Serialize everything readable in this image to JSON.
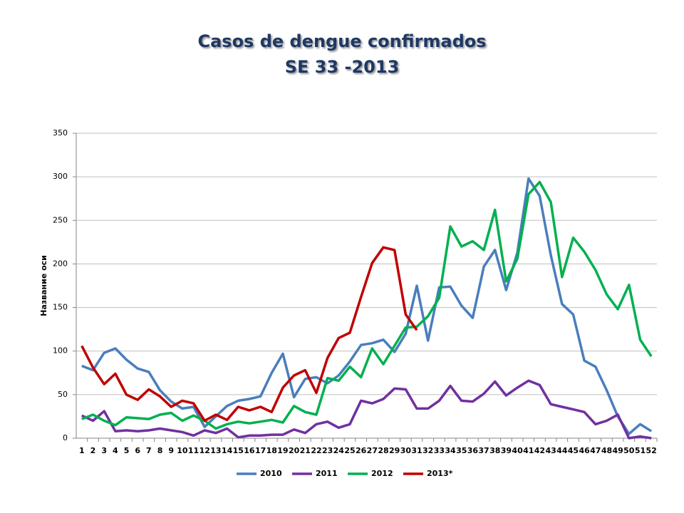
{
  "chart_data": {
    "type": "line",
    "title": [
      "Casos de dengue confirmados",
      "SE 33 -2013"
    ],
    "y_label": "Название оси",
    "categories": [
      "1",
      "2",
      "3",
      "4",
      "5",
      "6",
      "7",
      "8",
      "9",
      "10",
      "11",
      "12",
      "13",
      "14",
      "15",
      "16",
      "17",
      "18",
      "19",
      "20",
      "21",
      "22",
      "23",
      "24",
      "25",
      "26",
      "27",
      "28",
      "29",
      "30",
      "31",
      "32",
      "33",
      "34",
      "35",
      "36",
      "37",
      "38",
      "39",
      "40",
      "41",
      "42",
      "43",
      "44",
      "45",
      "46",
      "47",
      "48",
      "49",
      "50",
      "51",
      "52"
    ],
    "series": [
      {
        "name": "2010",
        "color": "#4a7ebb",
        "values": [
          83,
          78,
          98,
          103,
          90,
          80,
          76,
          55,
          42,
          34,
          36,
          13,
          25,
          37,
          43,
          45,
          48,
          75,
          97,
          47,
          68,
          70,
          63,
          72,
          88,
          107,
          109,
          113,
          99,
          120,
          175,
          112,
          173,
          174,
          152,
          138,
          197,
          216,
          170,
          213,
          298,
          278,
          210,
          154,
          142,
          89,
          82,
          55,
          25,
          5,
          16,
          8
        ]
      },
      {
        "name": "2011",
        "color": "#7030a0",
        "values": [
          26,
          20,
          31,
          8,
          9,
          8,
          9,
          11,
          9,
          7,
          3,
          9,
          6,
          11,
          1,
          3,
          3,
          4,
          4,
          10,
          6,
          16,
          19,
          12,
          16,
          43,
          40,
          45,
          57,
          56,
          34,
          34,
          43,
          60,
          43,
          42,
          51,
          65,
          49,
          58,
          66,
          61,
          39,
          36,
          33,
          30,
          16,
          20,
          27,
          0,
          2,
          0
        ]
      },
      {
        "name": "2012",
        "color": "#00b050",
        "values": [
          22,
          27,
          20,
          15,
          24,
          23,
          22,
          27,
          29,
          20,
          26,
          20,
          11,
          16,
          19,
          17,
          19,
          21,
          18,
          37,
          30,
          27,
          69,
          66,
          82,
          70,
          103,
          85,
          106,
          127,
          128,
          140,
          161,
          243,
          220,
          226,
          216,
          262,
          180,
          206,
          280,
          294,
          271,
          185,
          230,
          214,
          193,
          165,
          148,
          176,
          113,
          94
        ]
      },
      {
        "name": "2013*",
        "color": "#c00000",
        "values": [
          106,
          81,
          62,
          74,
          50,
          44,
          56,
          48,
          36,
          43,
          40,
          20,
          27,
          21,
          36,
          32,
          36,
          30,
          58,
          72,
          78,
          52,
          92,
          115,
          121,
          162,
          201,
          219,
          216,
          142,
          124,
          null,
          null,
          null,
          null,
          null,
          null,
          null,
          null,
          null,
          null,
          null,
          null,
          null,
          null,
          null,
          null,
          null,
          null,
          null,
          null,
          null
        ]
      }
    ],
    "ylim": [
      0,
      350
    ],
    "yticks": [
      0,
      50,
      100,
      150,
      200,
      250,
      300,
      350
    ],
    "grid": true,
    "legend": "bottom"
  }
}
